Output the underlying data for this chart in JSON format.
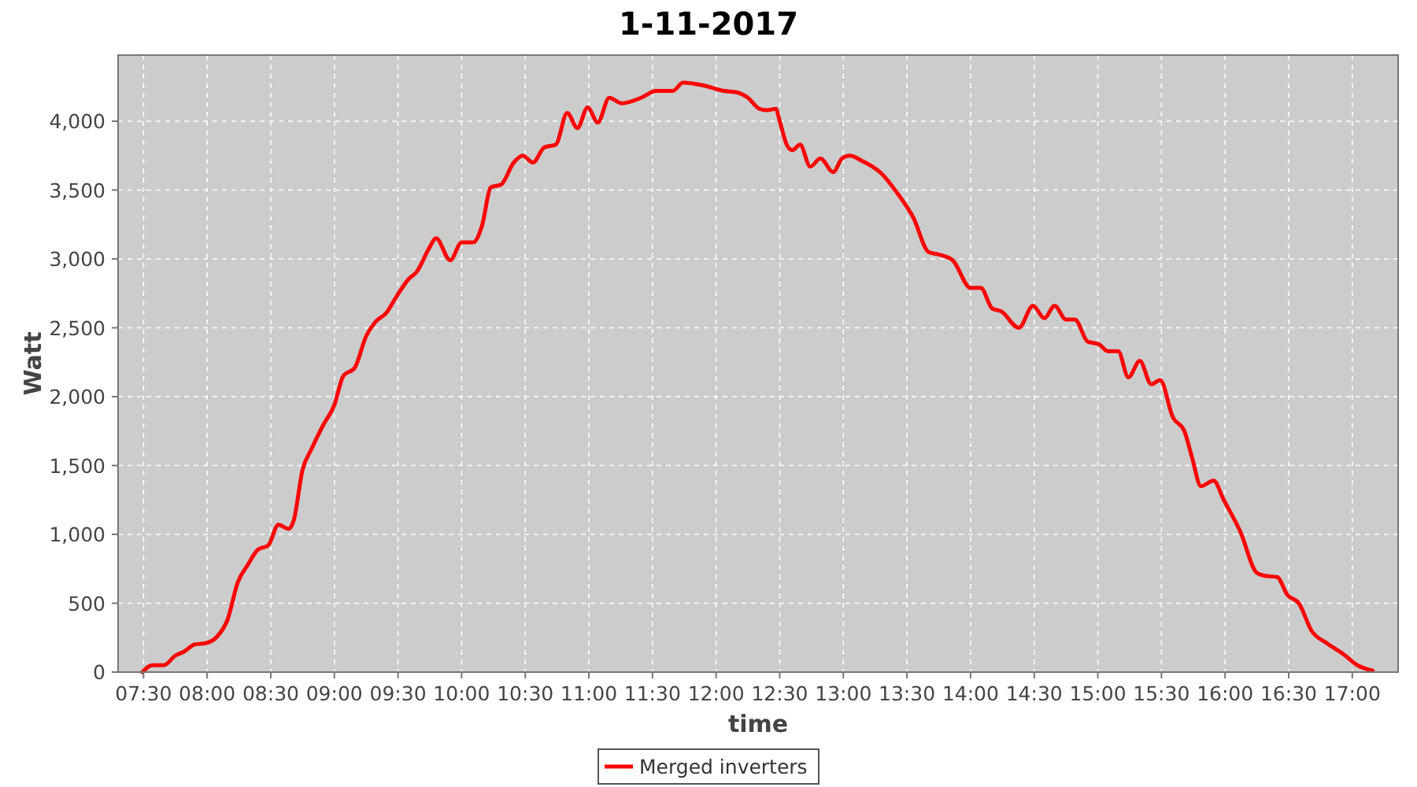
{
  "chart_data": {
    "type": "line",
    "title": "1-11-2017",
    "xlabel": "time",
    "ylabel": "Watt",
    "xlim": [
      7.3,
      17.36
    ],
    "ylim": [
      0,
      4480
    ],
    "xticks": [
      {
        "value": 7.5,
        "label": "07:30"
      },
      {
        "value": 8,
        "label": "08:00"
      },
      {
        "value": 8.5,
        "label": "08:30"
      },
      {
        "value": 9,
        "label": "09:00"
      },
      {
        "value": 9.5,
        "label": "09:30"
      },
      {
        "value": 10,
        "label": "10:00"
      },
      {
        "value": 10.5,
        "label": "10:30"
      },
      {
        "value": 11,
        "label": "11:00"
      },
      {
        "value": 11.5,
        "label": "11:30"
      },
      {
        "value": 12,
        "label": "12:00"
      },
      {
        "value": 12.5,
        "label": "12:30"
      },
      {
        "value": 13,
        "label": "13:00"
      },
      {
        "value": 13.5,
        "label": "13:30"
      },
      {
        "value": 14,
        "label": "14:00"
      },
      {
        "value": 14.5,
        "label": "14:30"
      },
      {
        "value": 15,
        "label": "15:00"
      },
      {
        "value": 15.5,
        "label": "15:30"
      },
      {
        "value": 16,
        "label": "16:00"
      },
      {
        "value": 16.5,
        "label": "16:30"
      },
      {
        "value": 17,
        "label": "17:00"
      }
    ],
    "yticks": [
      0,
      {
        "value": 500,
        "label": "500"
      },
      {
        "value": 1000,
        "label": "1,000"
      },
      {
        "value": 1500,
        "label": "1,500"
      },
      {
        "value": 2000,
        "label": "2,000"
      },
      {
        "value": 2500,
        "label": "2,500"
      },
      {
        "value": 3000,
        "label": "3,000"
      },
      {
        "value": 3500,
        "label": "3,500"
      },
      {
        "value": 4000,
        "label": "4,000"
      }
    ],
    "grid": true,
    "legend": "bottom",
    "marker": "none",
    "line_style": "solid",
    "x": [
      7.49,
      7.57,
      7.66,
      7.75,
      7.82,
      7.9,
      7.99,
      8.08,
      8.16,
      8.24,
      8.32,
      8.4,
      8.48,
      8.56,
      8.64,
      8.68,
      8.75,
      8.82,
      8.91,
      9.0,
      9.07,
      9.16,
      9.25,
      9.32,
      9.41,
      9.49,
      9.58,
      9.65,
      9.74,
      9.8,
      9.91,
      10.0,
      10.09,
      10.16,
      10.23,
      10.31,
      10.41,
      10.48,
      10.56,
      10.65,
      10.74,
      10.83,
      10.91,
      10.99,
      11.07,
      11.16,
      11.26,
      11.41,
      11.53,
      11.66,
      11.74,
      11.9,
      12.06,
      12.16,
      12.25,
      12.34,
      12.4,
      12.47,
      12.5,
      12.56,
      12.6,
      12.66,
      12.74,
      12.82,
      12.92,
      12.99,
      13.05,
      13.15,
      13.3,
      13.43,
      13.55,
      13.67,
      13.76,
      13.86,
      14.0,
      14.08,
      14.17,
      14.24,
      14.38,
      14.49,
      14.58,
      14.66,
      14.75,
      14.82,
      14.92,
      15.01,
      15.08,
      15.16,
      15.24,
      15.33,
      15.42,
      15.49,
      15.59,
      15.68,
      15.74,
      15.81,
      15.91,
      15.99,
      16.12,
      16.25,
      16.31,
      16.41,
      16.49,
      16.58,
      16.68,
      16.8,
      16.93,
      17.04,
      17.16
    ],
    "series": [
      {
        "name": "Merged inverters",
        "color": "#ff0000",
        "values": [
          0,
          50,
          50,
          120,
          150,
          200,
          210,
          260,
          380,
          650,
          780,
          890,
          920,
          1070,
          1040,
          1100,
          1470,
          1620,
          1790,
          1940,
          2150,
          2210,
          2440,
          2540,
          2610,
          2730,
          2850,
          2910,
          3070,
          3150,
          2990,
          3120,
          3120,
          3240,
          3520,
          3540,
          3700,
          3750,
          3700,
          3810,
          3830,
          4060,
          3950,
          4100,
          3990,
          4170,
          4130,
          4170,
          4220,
          4220,
          4280,
          4260,
          4220,
          4210,
          4170,
          4090,
          4080,
          4090,
          4000,
          3820,
          3790,
          3830,
          3670,
          3730,
          3630,
          3730,
          3750,
          3710,
          3620,
          3470,
          3300,
          3050,
          3030,
          2990,
          2790,
          2790,
          2640,
          2620,
          2500,
          2660,
          2570,
          2660,
          2560,
          2560,
          2400,
          2380,
          2330,
          2330,
          2140,
          2260,
          2090,
          2120,
          1850,
          1750,
          1560,
          1350,
          1390,
          1250,
          1020,
          720,
          700,
          690,
          560,
          500,
          300,
          210,
          130,
          50,
          10
        ]
      }
    ]
  }
}
